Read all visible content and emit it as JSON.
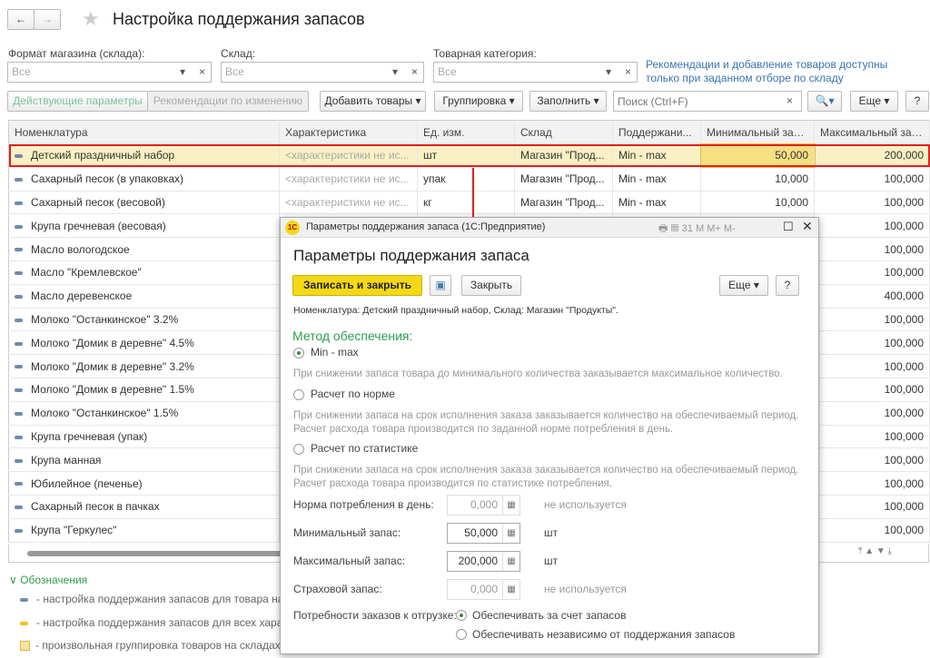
{
  "header": {
    "title": "Настройка поддержания запасов",
    "back": "←",
    "forward": "→"
  },
  "filters": {
    "format_label": "Формат магазина (склада):",
    "format_value": "Все",
    "warehouse_label": "Склад:",
    "warehouse_value": "Все",
    "category_label": "Товарная категория:",
    "category_value": "Все",
    "info": "Рекомендации и добавление товаров доступны только при заданном отборе по складу"
  },
  "toolbar": {
    "tab_active": "Действующие параметры",
    "tab_changes": "Рекомендации по изменению",
    "add": "Добавить товары",
    "group": "Группировка",
    "fill": "Заполнить",
    "search_placeholder": "Поиск (Ctrl+F)",
    "more": "Еще",
    "help": "?"
  },
  "table": {
    "columns": [
      "Номенклатура",
      "Характеристика",
      "Ед. изм.",
      "Склад",
      "Поддержани...",
      "Минимальный запас",
      "Максимальный запас"
    ],
    "rows": [
      [
        "Детский праздничный набор",
        "<характеристики не ис...",
        "шт",
        "Магазин \"Прод...",
        "Min - max",
        "50,000",
        "200,000"
      ],
      [
        "Сахарный песок (в упаковках)",
        "<характеристики не ис...",
        "упак",
        "Магазин \"Прод...",
        "Min - max",
        "10,000",
        "100,000"
      ],
      [
        "Сахарный песок (весовой)",
        "<характеристики не ис...",
        "кг",
        "Магазин \"Прод...",
        "Min - max",
        "10,000",
        "100,000"
      ],
      [
        "Крупа гречневая (весовая)",
        "",
        "",
        "",
        "",
        "",
        "100,000"
      ],
      [
        "Масло вологодское",
        "",
        "",
        "",
        "",
        "",
        "100,000"
      ],
      [
        "Масло \"Кремлевское\"",
        "",
        "",
        "",
        "",
        "",
        "100,000"
      ],
      [
        "Масло деревенское",
        "",
        "",
        "",
        "",
        "",
        "400,000"
      ],
      [
        "Молоко \"Останкинское\" 3.2%",
        "",
        "",
        "",
        "",
        "",
        "100,000"
      ],
      [
        "Молоко \"Домик в деревне\" 4.5%",
        "",
        "",
        "",
        "",
        "",
        "100,000"
      ],
      [
        "Молоко \"Домик в деревне\" 3.2%",
        "",
        "",
        "",
        "",
        "",
        "100,000"
      ],
      [
        "Молоко \"Домик в деревне\" 1.5%",
        "",
        "",
        "",
        "",
        "",
        "100,000"
      ],
      [
        "Молоко \"Останкинское\" 1.5%",
        "",
        "",
        "",
        "",
        "",
        "100,000"
      ],
      [
        "Крупа гречневая (упак)",
        "",
        "",
        "",
        "",
        "",
        "100,000"
      ],
      [
        "Крупа манная",
        "",
        "",
        "",
        "",
        "",
        "100,000"
      ],
      [
        "Юбилейное (печенье)",
        "",
        "",
        "",
        "",
        "",
        "100,000"
      ],
      [
        "Сахарный песок в пачках",
        "",
        "",
        "",
        "",
        "",
        "100,000"
      ],
      [
        "Крупа \"Геркулес\"",
        "",
        "",
        "",
        "",
        "",
        "100,000"
      ]
    ]
  },
  "legend": {
    "title": "Обозначения",
    "items": [
      "- настройка поддержания запасов для товара на с",
      "- настройка поддержания запасов для всех характ",
      "- произвольная группировка товаров на складах,"
    ]
  },
  "dialog": {
    "window_title": "Параметры поддержания запаса  (1С:Предприятие)",
    "title": "Параметры поддержания запаса",
    "save_close": "Записать и закрыть",
    "close": "Закрыть",
    "more": "Еще",
    "help": "?",
    "info": "Номенклатура: Детский праздничный набор, Склад: Магазин \"Продукты\".",
    "method_label": "Метод обеспечения:",
    "methods": [
      {
        "label": "Min - max",
        "hint": "При снижении запаса товара до минимального количества заказывается максимальное количество.",
        "selected": true
      },
      {
        "label": "Расчет по норме",
        "hint": "При снижении запаса на срок исполнения заказа заказывается количество на обеспечиваемый период.\nРасчет расхода товара производится по заданной норме потребления в день.",
        "selected": false
      },
      {
        "label": "Расчет по статистике",
        "hint": "При снижении запаса на срок исполнения заказа заказывается количество на обеспечиваемый период.\nРасчет расхода товара производится по статистике потребления.",
        "selected": false
      }
    ],
    "norm_label": "Норма потребления в день:",
    "norm_value": "0,000",
    "norm_note": "не используется",
    "min_label": "Минимальный запас:",
    "min_value": "50,000",
    "min_unit": "шт",
    "max_label": "Максимальный запас:",
    "max_value": "200,000",
    "max_unit": "шт",
    "safety_label": "Страховой запас:",
    "safety_value": "0,000",
    "safety_note": "не используется",
    "needs_label": "Потребности заказов к отгрузке:",
    "needs_opt1": "Обеспечивать за счет запасов",
    "needs_opt2": "Обеспечивать независимо от поддержания запасов",
    "tb": {
      "m": "M",
      "mplus": "M+",
      "mminus": "M-",
      "cal": "31"
    }
  },
  "colors": {
    "accent_yellow": "#f5d816",
    "highlight": "#e02020",
    "green": "#2e9e4f",
    "link": "#3a73b0"
  }
}
